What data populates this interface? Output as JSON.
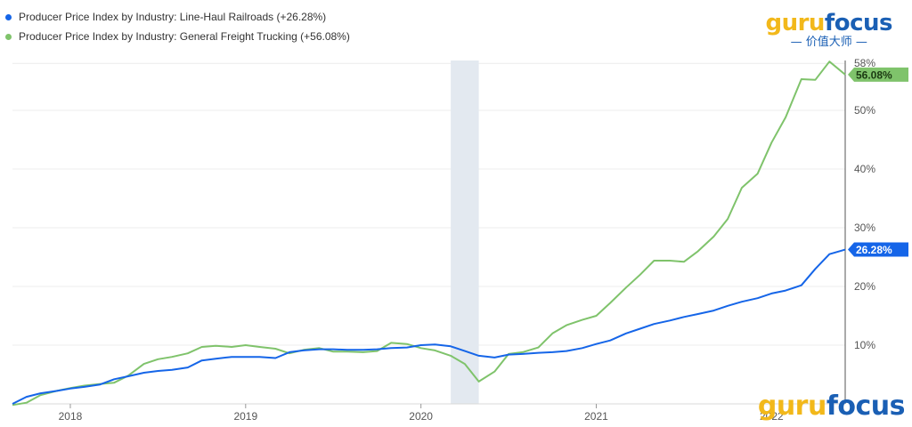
{
  "legend": [
    {
      "label": "Producer Price Index by Industry: Line-Haul Railroads (+26.28%)",
      "color": "#1565e8"
    },
    {
      "label": "Producer Price Index by Industry: General Freight Trucking (+56.08%)",
      "color": "#7fc36b"
    }
  ],
  "logo": {
    "gold_part": "guru",
    "blue_part": "focus",
    "subtitle": "价值大师",
    "gold_color": "#f2b81a",
    "blue_color": "#1a5fb4"
  },
  "chart_data": {
    "type": "line",
    "x_ticks": [
      "2018",
      "2019",
      "2020",
      "2021",
      "2022"
    ],
    "y_ticks": [
      "10%",
      "20%",
      "30%",
      "40%",
      "50%",
      "58%"
    ],
    "ylim": [
      0,
      60
    ],
    "x_range": [
      2017.67,
      2022.42
    ],
    "recession_band": [
      2020.17,
      2020.33
    ],
    "series": [
      {
        "name": "Producer Price Index by Industry: Line-Haul Railroads",
        "color": "#1565e8",
        "end_label": "26.28%",
        "points": [
          [
            2017.67,
            0
          ],
          [
            2017.75,
            1.2
          ],
          [
            2017.83,
            1.8
          ],
          [
            2017.92,
            2.2
          ],
          [
            2018.0,
            2.6
          ],
          [
            2018.08,
            2.9
          ],
          [
            2018.17,
            3.3
          ],
          [
            2018.25,
            4.2
          ],
          [
            2018.33,
            4.7
          ],
          [
            2018.42,
            5.3
          ],
          [
            2018.5,
            5.6
          ],
          [
            2018.58,
            5.8
          ],
          [
            2018.67,
            6.2
          ],
          [
            2018.75,
            7.4
          ],
          [
            2018.83,
            7.7
          ],
          [
            2018.92,
            8.0
          ],
          [
            2019.0,
            8.0
          ],
          [
            2019.08,
            8.0
          ],
          [
            2019.17,
            7.8
          ],
          [
            2019.25,
            8.8
          ],
          [
            2019.33,
            9.1
          ],
          [
            2019.42,
            9.3
          ],
          [
            2019.5,
            9.3
          ],
          [
            2019.58,
            9.2
          ],
          [
            2019.67,
            9.2
          ],
          [
            2019.75,
            9.3
          ],
          [
            2019.83,
            9.5
          ],
          [
            2019.92,
            9.6
          ],
          [
            2020.0,
            10.0
          ],
          [
            2020.08,
            10.1
          ],
          [
            2020.17,
            9.8
          ],
          [
            2020.25,
            9.0
          ],
          [
            2020.33,
            8.2
          ],
          [
            2020.42,
            7.9
          ],
          [
            2020.5,
            8.4
          ],
          [
            2020.58,
            8.5
          ],
          [
            2020.67,
            8.7
          ],
          [
            2020.75,
            8.8
          ],
          [
            2020.83,
            9.0
          ],
          [
            2020.92,
            9.5
          ],
          [
            2021.0,
            10.2
          ],
          [
            2021.08,
            10.8
          ],
          [
            2021.17,
            12.0
          ],
          [
            2021.25,
            12.8
          ],
          [
            2021.33,
            13.6
          ],
          [
            2021.42,
            14.2
          ],
          [
            2021.5,
            14.8
          ],
          [
            2021.58,
            15.3
          ],
          [
            2021.67,
            15.9
          ],
          [
            2021.75,
            16.7
          ],
          [
            2021.83,
            17.4
          ],
          [
            2021.92,
            18.0
          ],
          [
            2022.0,
            18.8
          ],
          [
            2022.08,
            19.3
          ],
          [
            2022.17,
            20.2
          ],
          [
            2022.25,
            23.0
          ],
          [
            2022.33,
            25.5
          ],
          [
            2022.42,
            26.28
          ]
        ]
      },
      {
        "name": "Producer Price Index by Industry: General Freight Trucking",
        "color": "#7fc36b",
        "end_label": "56.08%",
        "points": [
          [
            2017.67,
            -0.2
          ],
          [
            2017.75,
            0.2
          ],
          [
            2017.83,
            1.5
          ],
          [
            2017.92,
            2.2
          ],
          [
            2018.0,
            2.7
          ],
          [
            2018.08,
            3.1
          ],
          [
            2018.17,
            3.4
          ],
          [
            2018.25,
            3.6
          ],
          [
            2018.33,
            4.8
          ],
          [
            2018.42,
            6.8
          ],
          [
            2018.5,
            7.6
          ],
          [
            2018.58,
            8.0
          ],
          [
            2018.67,
            8.6
          ],
          [
            2018.75,
            9.7
          ],
          [
            2018.83,
            9.9
          ],
          [
            2018.92,
            9.7
          ],
          [
            2019.0,
            10.0
          ],
          [
            2019.08,
            9.7
          ],
          [
            2019.17,
            9.4
          ],
          [
            2019.25,
            8.6
          ],
          [
            2019.33,
            9.2
          ],
          [
            2019.42,
            9.5
          ],
          [
            2019.5,
            8.9
          ],
          [
            2019.58,
            8.9
          ],
          [
            2019.67,
            8.8
          ],
          [
            2019.75,
            9.0
          ],
          [
            2019.83,
            10.4
          ],
          [
            2019.92,
            10.2
          ],
          [
            2020.0,
            9.5
          ],
          [
            2020.08,
            9.1
          ],
          [
            2020.17,
            8.2
          ],
          [
            2020.25,
            6.8
          ],
          [
            2020.33,
            3.8
          ],
          [
            2020.42,
            5.5
          ],
          [
            2020.5,
            8.5
          ],
          [
            2020.58,
            8.8
          ],
          [
            2020.67,
            9.6
          ],
          [
            2020.75,
            12.0
          ],
          [
            2020.83,
            13.4
          ],
          [
            2020.92,
            14.3
          ],
          [
            2021.0,
            15.0
          ],
          [
            2021.08,
            17.2
          ],
          [
            2021.17,
            19.8
          ],
          [
            2021.25,
            22.0
          ],
          [
            2021.33,
            24.4
          ],
          [
            2021.42,
            24.4
          ],
          [
            2021.5,
            24.2
          ],
          [
            2021.58,
            26.0
          ],
          [
            2021.67,
            28.5
          ],
          [
            2021.75,
            31.5
          ],
          [
            2021.83,
            36.8
          ],
          [
            2021.92,
            39.2
          ],
          [
            2022.0,
            44.5
          ],
          [
            2022.08,
            48.8
          ],
          [
            2022.17,
            55.3
          ],
          [
            2022.25,
            55.2
          ],
          [
            2022.33,
            58.3
          ],
          [
            2022.42,
            56.08
          ]
        ]
      }
    ]
  }
}
